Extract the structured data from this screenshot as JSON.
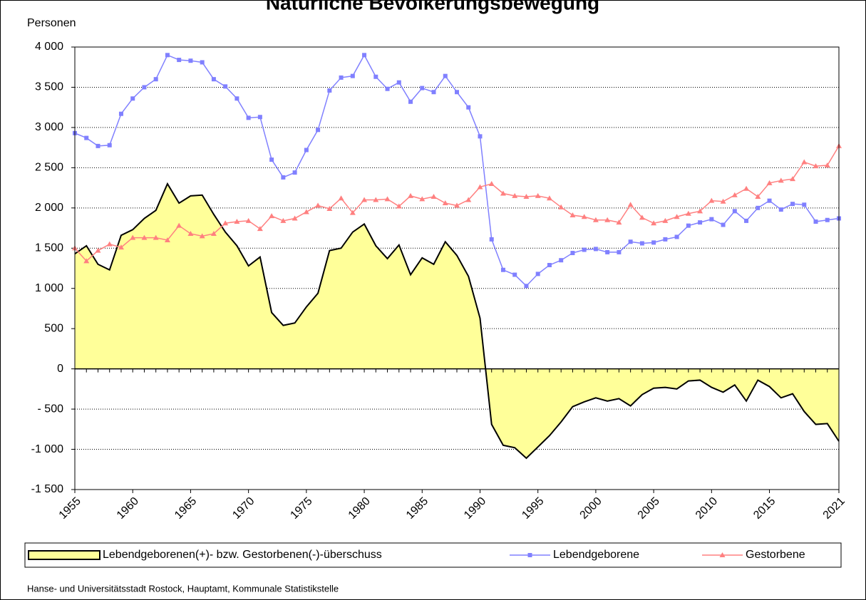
{
  "chart_data": {
    "type": "line",
    "title": "Natürliche Bevölkerungsbewegung",
    "y_label": "Personen",
    "source": "Hanse- und Universitätsstadt Rostock, Hauptamt, Kommunale Statistikstelle",
    "x": [
      1955,
      1956,
      1957,
      1958,
      1959,
      1960,
      1961,
      1962,
      1963,
      1964,
      1965,
      1966,
      1967,
      1968,
      1969,
      1970,
      1971,
      1972,
      1973,
      1974,
      1975,
      1976,
      1977,
      1978,
      1979,
      1980,
      1981,
      1982,
      1983,
      1984,
      1985,
      1986,
      1987,
      1988,
      1989,
      1990,
      1991,
      1992,
      1993,
      1994,
      1995,
      1996,
      1997,
      1998,
      1999,
      2000,
      2001,
      2002,
      2003,
      2004,
      2005,
      2006,
      2007,
      2008,
      2009,
      2010,
      2011,
      2012,
      2013,
      2014,
      2015,
      2016,
      2017,
      2018,
      2019,
      2020,
      2021
    ],
    "series": [
      {
        "name": "Lebendgeborenen(+)- bzw. Gestorbenen(-)-überschuss",
        "type": "area",
        "color": "#ffff99",
        "line_color": "#000000",
        "values": [
          1430,
          1530,
          1300,
          1230,
          1660,
          1730,
          1870,
          1970,
          2300,
          2060,
          2150,
          2160,
          1920,
          1700,
          1530,
          1280,
          1390,
          700,
          540,
          570,
          770,
          940,
          1470,
          1500,
          1700,
          1800,
          1530,
          1370,
          1540,
          1170,
          1380,
          1300,
          1580,
          1410,
          1150,
          630,
          -690,
          -950,
          -980,
          -1110,
          -970,
          -830,
          -660,
          -470,
          -410,
          -360,
          -400,
          -370,
          -460,
          -320,
          -240,
          -230,
          -250,
          -150,
          -140,
          -230,
          -290,
          -200,
          -400,
          -140,
          -220,
          -360,
          -310,
          -530,
          -690,
          -680,
          -900
        ]
      },
      {
        "name": "Lebendgeborene",
        "type": "line",
        "marker": "square",
        "color": "#8080ff",
        "values": [
          2930,
          2870,
          2770,
          2780,
          3170,
          3360,
          3500,
          3600,
          3900,
          3840,
          3830,
          3810,
          3600,
          3510,
          3360,
          3120,
          3130,
          2600,
          2380,
          2440,
          2720,
          2970,
          3460,
          3620,
          3640,
          3900,
          3630,
          3480,
          3560,
          3320,
          3490,
          3440,
          3640,
          3440,
          3250,
          2890,
          1610,
          1230,
          1170,
          1030,
          1180,
          1290,
          1350,
          1440,
          1480,
          1490,
          1450,
          1450,
          1580,
          1560,
          1570,
          1610,
          1640,
          1780,
          1820,
          1860,
          1790,
          1960,
          1840,
          2000,
          2090,
          1980,
          2050,
          2040,
          1830,
          1850,
          1870
        ]
      },
      {
        "name": "Gestorbene",
        "type": "line",
        "marker": "triangle",
        "color": "#ff8080",
        "values": [
          1500,
          1340,
          1470,
          1550,
          1510,
          1630,
          1630,
          1630,
          1600,
          1780,
          1680,
          1650,
          1680,
          1810,
          1830,
          1840,
          1740,
          1900,
          1840,
          1870,
          1950,
          2030,
          1990,
          2120,
          1940,
          2100,
          2100,
          2110,
          2020,
          2150,
          2110,
          2140,
          2060,
          2030,
          2100,
          2260,
          2300,
          2180,
          2150,
          2140,
          2150,
          2120,
          2010,
          1910,
          1890,
          1850,
          1850,
          1820,
          2040,
          1880,
          1810,
          1840,
          1890,
          1930,
          1960,
          2090,
          2080,
          2160,
          2240,
          2140,
          2310,
          2340,
          2360,
          2570,
          2520,
          2530,
          2770
        ]
      }
    ],
    "xlim": [
      1955,
      2021
    ],
    "xticks": [
      1955,
      1960,
      1965,
      1970,
      1975,
      1980,
      1985,
      1990,
      1995,
      2000,
      2005,
      2010,
      2015,
      2021
    ],
    "ylim": [
      -1500,
      4000
    ],
    "yticks": [
      {
        "value": -1500,
        "label": "-1 500"
      },
      {
        "value": -1000,
        "label": "-1 000"
      },
      {
        "value": -500,
        "label": "- 500"
      },
      0,
      {
        "value": 500,
        "label": "500"
      },
      {
        "value": 1000,
        "label": "1 000"
      },
      {
        "value": 1500,
        "label": "1 500"
      },
      {
        "value": 2000,
        "label": "2 000"
      },
      {
        "value": 2500,
        "label": "2 500"
      },
      {
        "value": 3000,
        "label": "3 000"
      },
      {
        "value": 3500,
        "label": "3 500"
      },
      {
        "value": 4000,
        "label": "4 000"
      }
    ],
    "grid": true,
    "legend": "bottom"
  }
}
